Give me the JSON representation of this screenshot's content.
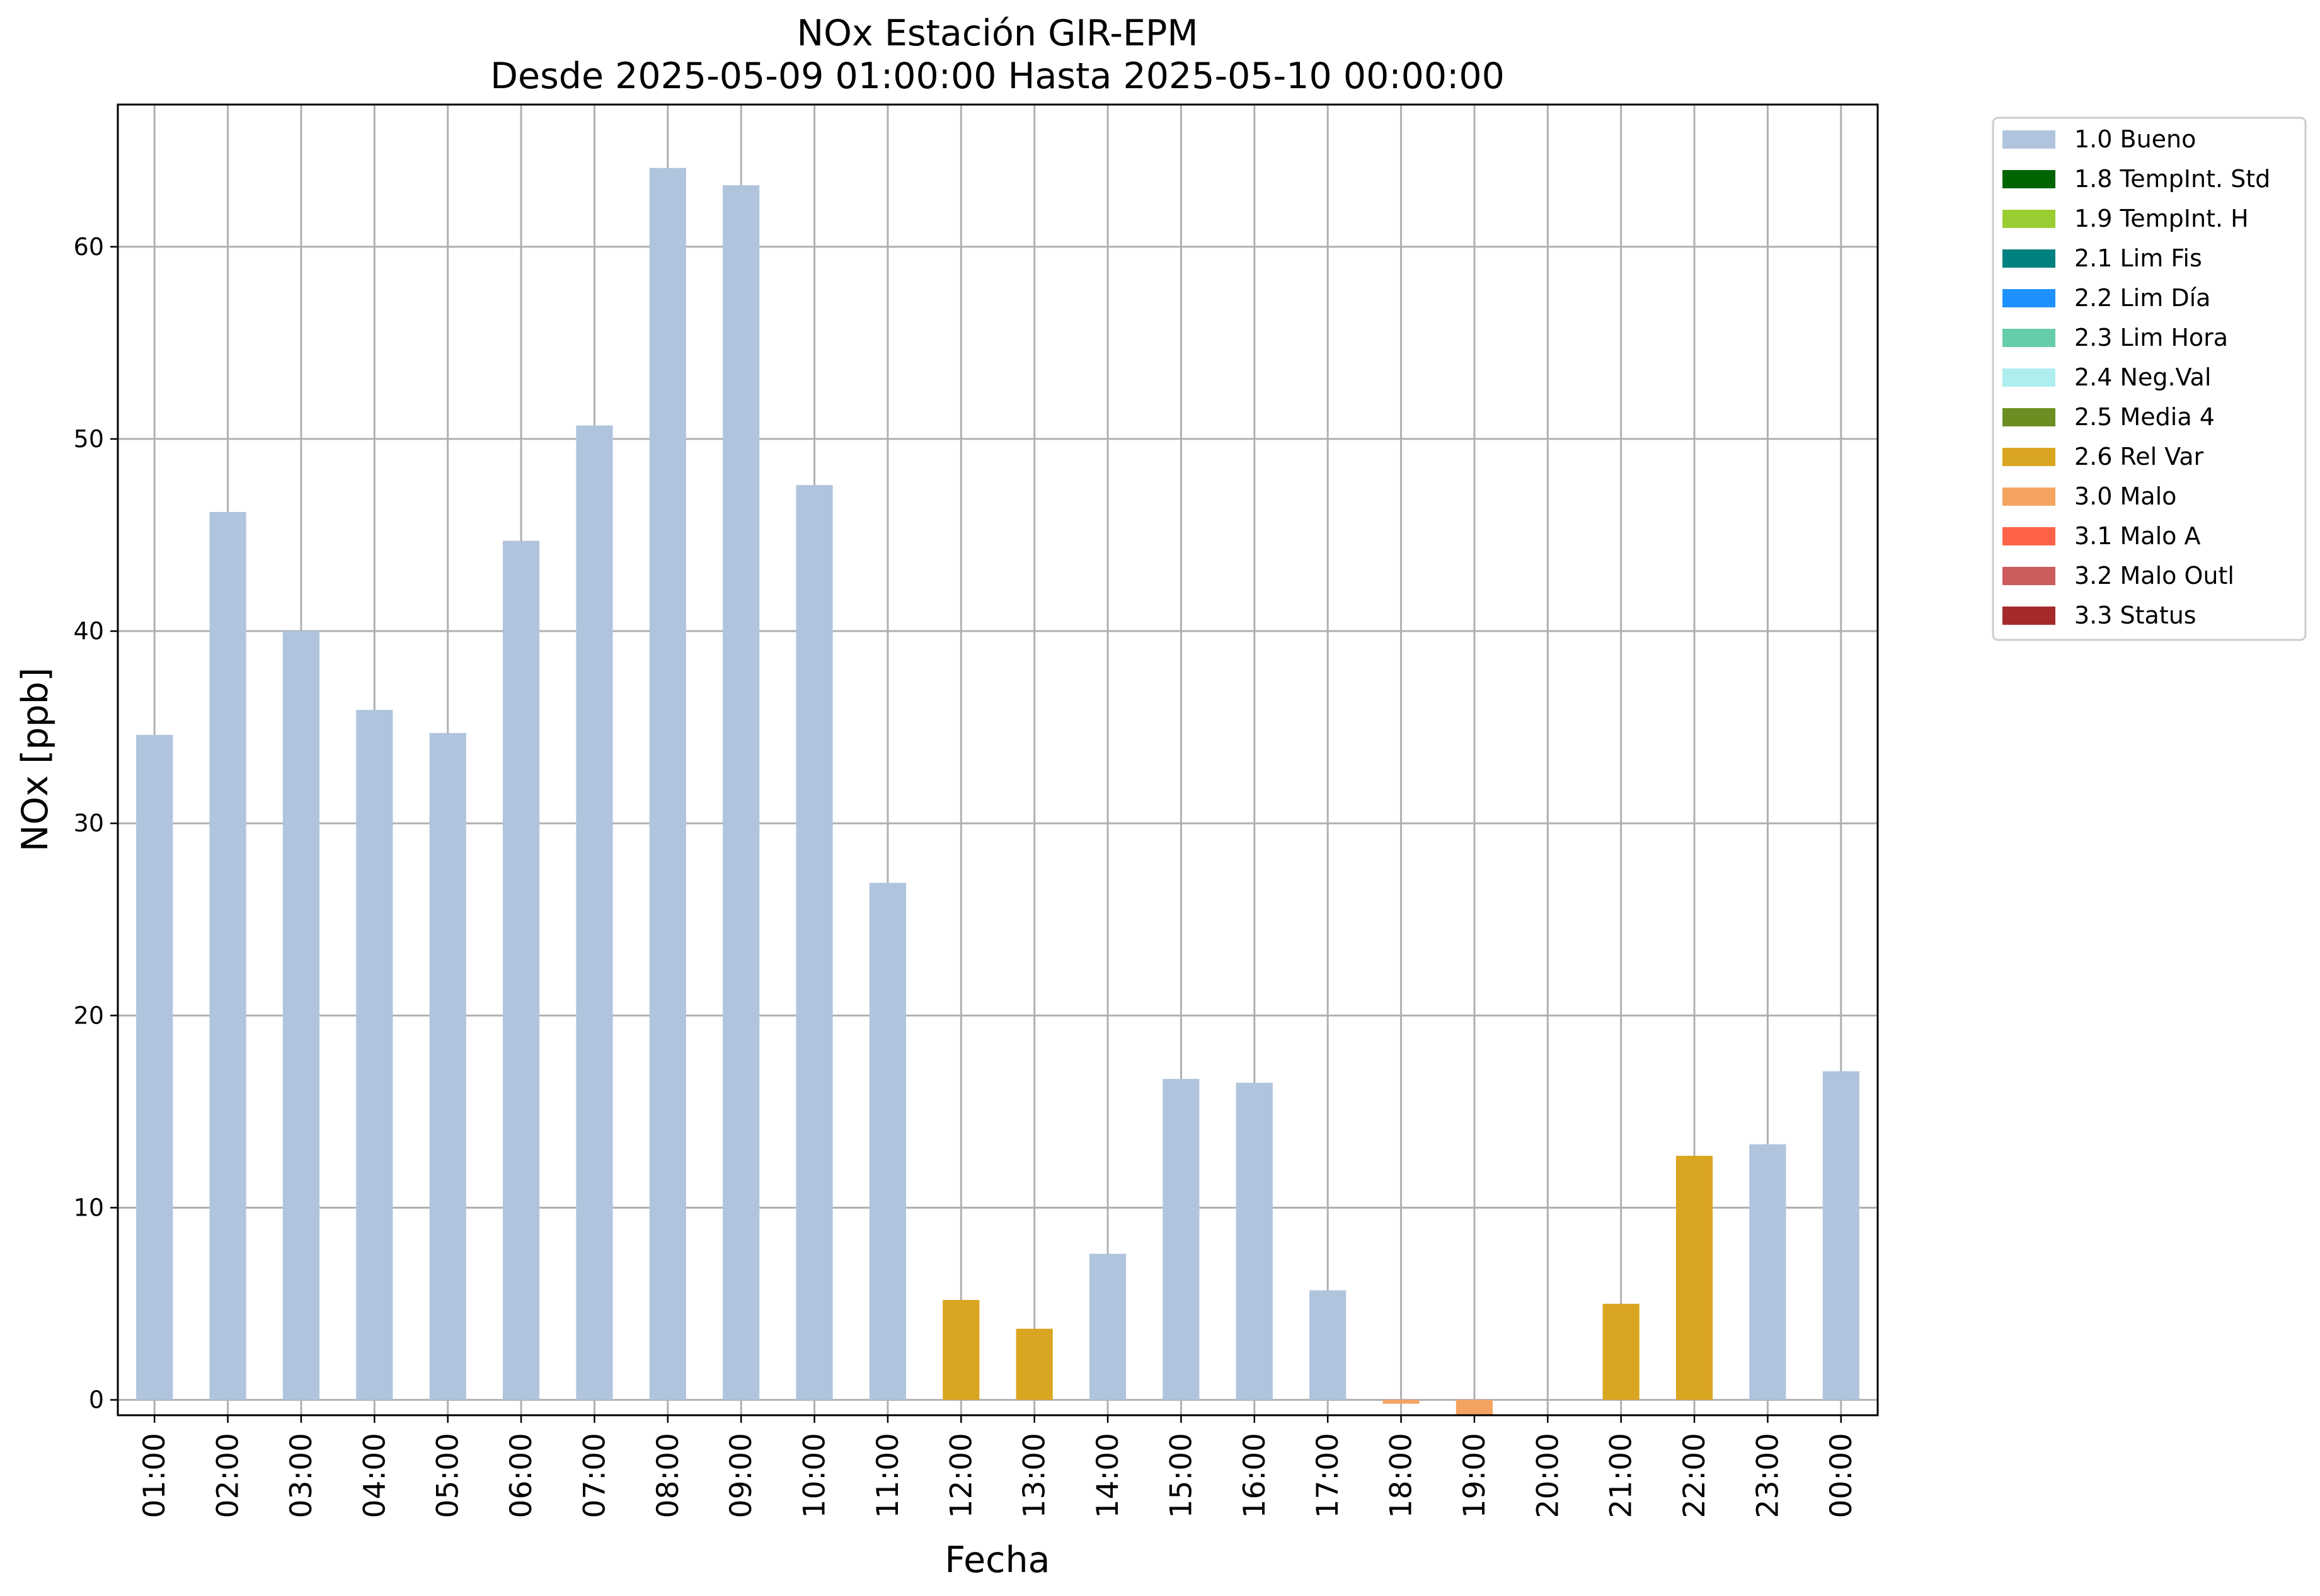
{
  "chart_data": {
    "type": "bar",
    "title": "NOx Estación GIR-EPM",
    "subtitle": "Desde 2025-05-09 01:00:00 Hasta 2025-05-10 00:00:00",
    "xlabel": "Fecha",
    "ylabel": "NOx [ppb]",
    "ylim": [
      -0.8,
      67.4
    ],
    "yticks": [
      0,
      10,
      20,
      30,
      40,
      50,
      60
    ],
    "grid": true,
    "legend_position": "outside-top-right",
    "categories": [
      "01:00",
      "02:00",
      "03:00",
      "04:00",
      "05:00",
      "06:00",
      "07:00",
      "08:00",
      "09:00",
      "10:00",
      "11:00",
      "12:00",
      "13:00",
      "14:00",
      "15:00",
      "16:00",
      "17:00",
      "18:00",
      "19:00",
      "20:00",
      "21:00",
      "22:00",
      "23:00",
      "00:00"
    ],
    "values": [
      34.6,
      46.2,
      40.0,
      35.9,
      34.7,
      44.7,
      50.7,
      64.1,
      63.2,
      47.6,
      26.9,
      5.2,
      3.7,
      7.6,
      16.7,
      16.5,
      5.7,
      -0.2,
      -0.8,
      0,
      5.0,
      12.7,
      13.3,
      17.1
    ],
    "flags": [
      "1.0 Bueno",
      "1.0 Bueno",
      "1.0 Bueno",
      "1.0 Bueno",
      "1.0 Bueno",
      "1.0 Bueno",
      "1.0 Bueno",
      "1.0 Bueno",
      "1.0 Bueno",
      "1.0 Bueno",
      "1.0 Bueno",
      "2.6 Rel Var",
      "2.6 Rel Var",
      "1.0 Bueno",
      "1.0 Bueno",
      "1.0 Bueno",
      "1.0 Bueno",
      "3.0 Malo",
      "3.0 Malo",
      "",
      "2.6 Rel Var",
      "2.6 Rel Var",
      "1.0 Bueno",
      "1.0 Bueno"
    ],
    "legend": [
      {
        "name": "1.0 Bueno",
        "color": "#b0c4de"
      },
      {
        "name": "1.8 TempInt. Std",
        "color": "#006400"
      },
      {
        "name": "1.9 TempInt. H",
        "color": "#9acd32"
      },
      {
        "name": "2.1 Lim Fis",
        "color": "#008080"
      },
      {
        "name": "2.2 Lim Día",
        "color": "#1e90ff"
      },
      {
        "name": "2.3 Lim Hora",
        "color": "#66cdaa"
      },
      {
        "name": "2.4 Neg.Val",
        "color": "#afeeee"
      },
      {
        "name": "2.5 Media 4",
        "color": "#6b8e23"
      },
      {
        "name": "2.6 Rel Var",
        "color": "#daa520"
      },
      {
        "name": "3.0 Malo",
        "color": "#f4a460"
      },
      {
        "name": "3.1 Malo A",
        "color": "#ff6347"
      },
      {
        "name": "3.2 Malo Outl",
        "color": "#cd5c5c"
      },
      {
        "name": "3.3 Status",
        "color": "#a52a2a"
      }
    ]
  }
}
